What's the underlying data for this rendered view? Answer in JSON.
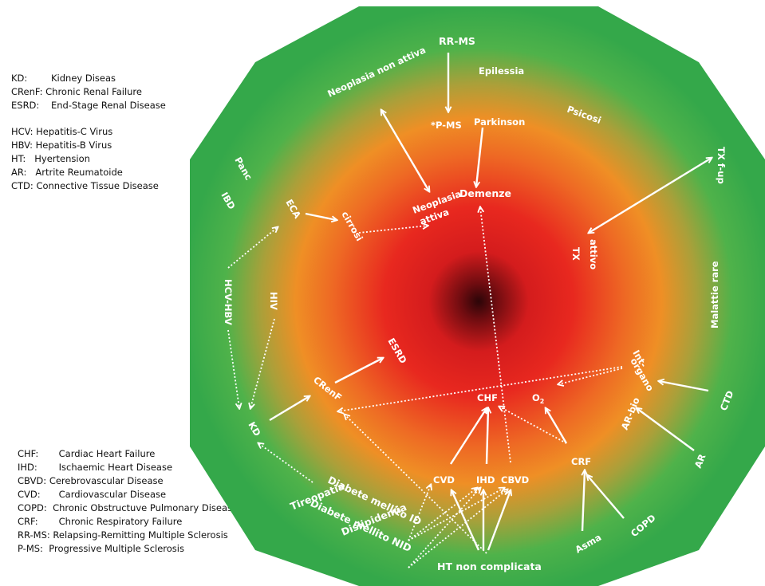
{
  "legend_top": {
    "renal": [
      {
        "abbr": "KD:",
        "desc": "Kidney Diseas"
      },
      {
        "abbr": "CRenF:",
        "desc": "Chronic Renal Failure"
      },
      {
        "abbr": "ESRD:",
        "desc": "End-Stage Renal Disease"
      }
    ],
    "other": [
      {
        "abbr": "HCV:",
        "desc": "Hepatitis-C Virus"
      },
      {
        "abbr": "HBV:",
        "desc": "Hepatitis-B Virus"
      },
      {
        "abbr": "HT:",
        "desc": "Hyertension"
      },
      {
        "abbr": "AR:",
        "desc": "Artrite Reumatoide"
      },
      {
        "abbr": "CTD:",
        "desc": "Connective Tissue Disease"
      }
    ]
  },
  "legend_bottom": [
    {
      "abbr": "CHF:",
      "desc": "Cardiac Heart Failure"
    },
    {
      "abbr": "IHD:",
      "desc": "Ischaemic Heart Disease"
    },
    {
      "abbr": "CBVD:",
      "desc": "Cerebrovascular Disease"
    },
    {
      "abbr": "CVD:",
      "desc": "Cardiovascular Disease"
    },
    {
      "abbr": "COPD:",
      "desc": "Chronic Obstructuve Pulmonary  Disease"
    },
    {
      "abbr": "CRF:",
      "desc": "Chronic Respiratory Failure"
    },
    {
      "abbr": "RR-MS:",
      "desc": "Relapsing-Remitting Multiple Sclerosis"
    },
    {
      "abbr": "P-MS:",
      "desc": "Progressive Multiple Sclerosis"
    }
  ],
  "colors": {
    "core": "#2b0508",
    "red": "#e8221f",
    "orange": "#ef8a22",
    "green": "#3fae4c",
    "label": "#ffffff"
  },
  "nodes": {
    "rr_ms": "RR-MS",
    "epilessia": "Epilessia",
    "neoplasia_non_attiva": "Neoplasia non attiva",
    "p_ms": "*P-MS",
    "parkinson": "Parkinson",
    "psicosi": "Psicosi",
    "tx_fup": "TX f-up",
    "panc": "Panc",
    "ibd": "IBD",
    "eca": "ECA",
    "cirrosi": "cirrosi",
    "neoplasia_attiva_1": "Neoplasia",
    "neoplasia_attiva_2": "attiva",
    "demenze": "Demenze",
    "tx_attivo_1": "TX",
    "tx_attivo_2": "attivo",
    "hcv_hbv": "HCV-HBV",
    "hiv": "HIV",
    "malattie_rare": "Malattie rare",
    "esrd": "ESRD",
    "int_organo_1": "Int-",
    "int_organo_2": "organo",
    "crenf": "CRenF",
    "chf": "CHF",
    "o2": "O",
    "o2_sub": "2",
    "ar_bio": "AR-bio",
    "ctd": "CTD",
    "kd": "KD",
    "cvd": "CVD",
    "ihd": "IHD",
    "cbvd": "CBVD",
    "crf": "CRF",
    "ar": "AR",
    "diabete_id": "Diabete mellito ID",
    "diabete_nid": "Diabete mellito NID",
    "tireopatia": "Tireopatia",
    "dislipidemia": "Dislipidemia",
    "copd": "COPD",
    "asma": "Asma",
    "ht": "HT non complicata"
  }
}
